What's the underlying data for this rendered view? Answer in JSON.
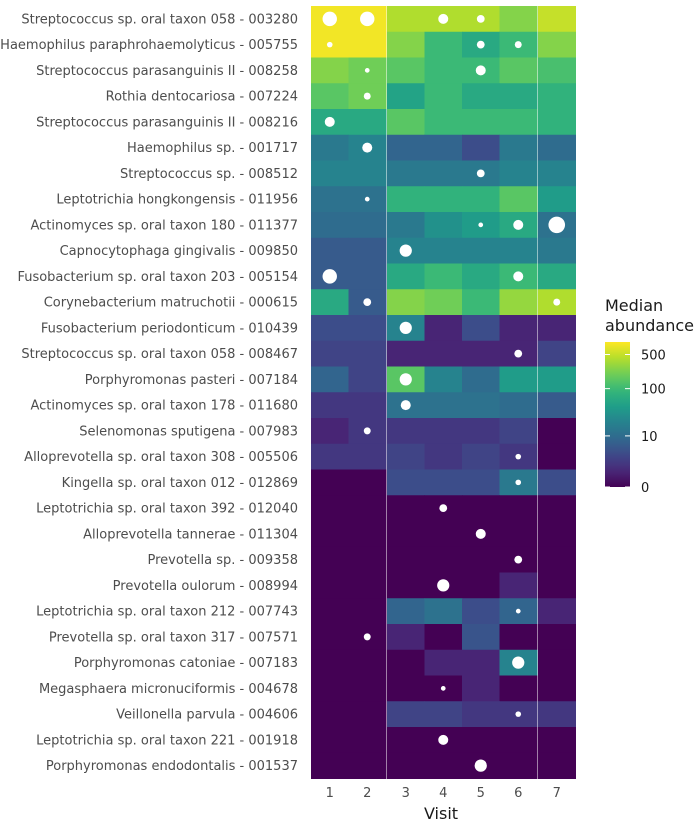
{
  "chart_data": {
    "type": "heatmap",
    "title": "",
    "xlabel": "Visit",
    "ylabel": "",
    "x": [
      "1",
      "2",
      "3",
      "4",
      "5",
      "6",
      "7"
    ],
    "panels": [
      [
        "1",
        "2"
      ],
      [
        "3",
        "4",
        "5",
        "6"
      ],
      [
        "7"
      ]
    ],
    "rows": [
      "Streptococcus sp. oral taxon 058 - 003280",
      "Haemophilus paraphrohaemolyticus - 005755",
      "Streptococcus parasanguinis II - 008258",
      "Rothia dentocariosa - 007224",
      "Streptococcus parasanguinis II - 008216",
      "Haemophilus sp. - 001717",
      "Streptococcus sp. - 008512",
      "Leptotrichia hongkongensis - 011956",
      "Actinomyces sp. oral taxon 180 - 011377",
      "Capnocytophaga gingivalis - 009850",
      "Fusobacterium sp. oral taxon 203 - 005154",
      "Corynebacterium matruchotii - 000615",
      "Fusobacterium periodonticum - 010439",
      "Streptococcus sp. oral taxon 058 - 008467",
      "Porphyromonas pasteri - 007184",
      "Actinomyces sp. oral taxon 178 - 011680",
      "Selenomonas sputigena - 007983",
      "Alloprevotella sp. oral taxon 308 - 005506",
      "Kingella sp. oral taxon 012 - 012869",
      "Leptotrichia sp. oral taxon 392 - 012040",
      "Alloprevotella tannerae - 011304",
      "Prevotella sp. - 009358",
      "Prevotella oulorum - 008994",
      "Leptotrichia sp. oral taxon 212 - 007743",
      "Prevotella sp. oral taxon 317 - 007571",
      "Porphyromonas catoniae - 007183",
      "Megasphaera micronuciformis - 004678",
      "Veillonella parvula - 004606",
      "Leptotrichia sp. oral taxon 221 - 001918",
      "Porphyromonas endodontalis - 001537"
    ],
    "values": [
      [
        800,
        800,
        400,
        400,
        400,
        250,
        500
      ],
      [
        800,
        800,
        250,
        100,
        60,
        100,
        250
      ],
      [
        250,
        200,
        150,
        100,
        100,
        150,
        120
      ],
      [
        150,
        200,
        50,
        100,
        60,
        60,
        80
      ],
      [
        60,
        60,
        150,
        100,
        100,
        100,
        80
      ],
      [
        15,
        20,
        8,
        8,
        4,
        15,
        10
      ],
      [
        20,
        20,
        15,
        15,
        15,
        20,
        20
      ],
      [
        12,
        12,
        80,
        80,
        80,
        150,
        40
      ],
      [
        10,
        10,
        15,
        30,
        40,
        60,
        12
      ],
      [
        6,
        6,
        20,
        20,
        20,
        20,
        15
      ],
      [
        6,
        6,
        60,
        100,
        60,
        100,
        60
      ],
      [
        60,
        6,
        250,
        200,
        100,
        300,
        400
      ],
      [
        4,
        4,
        20,
        1,
        4,
        1,
        1
      ],
      [
        3,
        3,
        1,
        1,
        1,
        1,
        3
      ],
      [
        8,
        3,
        150,
        20,
        10,
        40,
        40
      ],
      [
        2,
        2,
        12,
        12,
        12,
        10,
        6
      ],
      [
        1,
        2,
        2,
        2,
        2,
        3,
        0
      ],
      [
        2,
        2,
        3,
        2,
        3,
        2,
        0
      ],
      [
        0,
        0,
        4,
        4,
        4,
        15,
        4
      ],
      [
        0,
        0,
        0,
        0,
        0,
        0,
        0
      ],
      [
        0,
        0,
        0,
        0,
        0,
        0,
        0
      ],
      [
        0,
        0,
        0,
        0,
        0,
        0,
        0
      ],
      [
        0,
        0,
        0,
        0,
        0,
        1,
        0
      ],
      [
        0,
        0,
        8,
        12,
        4,
        8,
        1
      ],
      [
        0,
        0,
        1,
        0,
        5,
        0,
        0
      ],
      [
        0,
        0,
        0,
        1,
        1,
        20,
        0
      ],
      [
        0,
        0,
        0,
        0,
        1,
        0,
        0
      ],
      [
        0,
        0,
        3,
        3,
        2,
        2,
        2
      ],
      [
        0,
        0,
        0,
        0,
        0,
        0,
        0
      ],
      [
        0,
        0,
        0,
        0,
        0,
        0,
        0
      ]
    ],
    "points": [
      {
        "row": 0,
        "col": 0,
        "size": 3
      },
      {
        "row": 0,
        "col": 1,
        "size": 3
      },
      {
        "row": 0,
        "col": 3,
        "size": 2
      },
      {
        "row": 0,
        "col": 4,
        "size": 1.5
      },
      {
        "row": 1,
        "col": 0,
        "size": 1
      },
      {
        "row": 1,
        "col": 4,
        "size": 1.5
      },
      {
        "row": 1,
        "col": 5,
        "size": 1.3
      },
      {
        "row": 2,
        "col": 1,
        "size": 0.8
      },
      {
        "row": 2,
        "col": 4,
        "size": 2
      },
      {
        "row": 3,
        "col": 1,
        "size": 1.3
      },
      {
        "row": 4,
        "col": 0,
        "size": 2
      },
      {
        "row": 5,
        "col": 1,
        "size": 2
      },
      {
        "row": 6,
        "col": 4,
        "size": 1.5
      },
      {
        "row": 7,
        "col": 1,
        "size": 0.8
      },
      {
        "row": 8,
        "col": 4,
        "size": 0.8
      },
      {
        "row": 8,
        "col": 5,
        "size": 2
      },
      {
        "row": 8,
        "col": 6,
        "size": 3.5
      },
      {
        "row": 9,
        "col": 2,
        "size": 2.5
      },
      {
        "row": 10,
        "col": 0,
        "size": 3
      },
      {
        "row": 10,
        "col": 5,
        "size": 2
      },
      {
        "row": 11,
        "col": 1,
        "size": 1.5
      },
      {
        "row": 11,
        "col": 6,
        "size": 1.3
      },
      {
        "row": 12,
        "col": 2,
        "size": 2.5
      },
      {
        "row": 13,
        "col": 5,
        "size": 1.5
      },
      {
        "row": 14,
        "col": 2,
        "size": 2.5
      },
      {
        "row": 15,
        "col": 2,
        "size": 2
      },
      {
        "row": 16,
        "col": 1,
        "size": 1.3
      },
      {
        "row": 17,
        "col": 5,
        "size": 1
      },
      {
        "row": 18,
        "col": 5,
        "size": 1
      },
      {
        "row": 19,
        "col": 3,
        "size": 1.5
      },
      {
        "row": 20,
        "col": 4,
        "size": 2
      },
      {
        "row": 21,
        "col": 5,
        "size": 1.5
      },
      {
        "row": 22,
        "col": 3,
        "size": 2.5
      },
      {
        "row": 23,
        "col": 5,
        "size": 0.8
      },
      {
        "row": 24,
        "col": 1,
        "size": 1.3
      },
      {
        "row": 25,
        "col": 5,
        "size": 2.5
      },
      {
        "row": 26,
        "col": 3,
        "size": 0.8
      },
      {
        "row": 27,
        "col": 5,
        "size": 1
      },
      {
        "row": 28,
        "col": 3,
        "size": 2
      },
      {
        "row": 29,
        "col": 4,
        "size": 2.5
      }
    ],
    "legend": {
      "title": "Median abundance",
      "title_lines": [
        "Median",
        "abundance"
      ],
      "breaks": [
        500,
        100,
        10,
        0
      ],
      "labels": [
        "500",
        "100",
        "10",
        "0"
      ],
      "scale": "log(x+1)",
      "max": 900,
      "placement": "right"
    },
    "colors": {
      "palette": [
        "#440154",
        "#482878",
        "#3e4989",
        "#31688e",
        "#26828e",
        "#1f9e89",
        "#35b779",
        "#6ece58",
        "#b5de2b",
        "#fde725"
      ],
      "point": "#ffffff",
      "background": "#ffffff"
    }
  }
}
